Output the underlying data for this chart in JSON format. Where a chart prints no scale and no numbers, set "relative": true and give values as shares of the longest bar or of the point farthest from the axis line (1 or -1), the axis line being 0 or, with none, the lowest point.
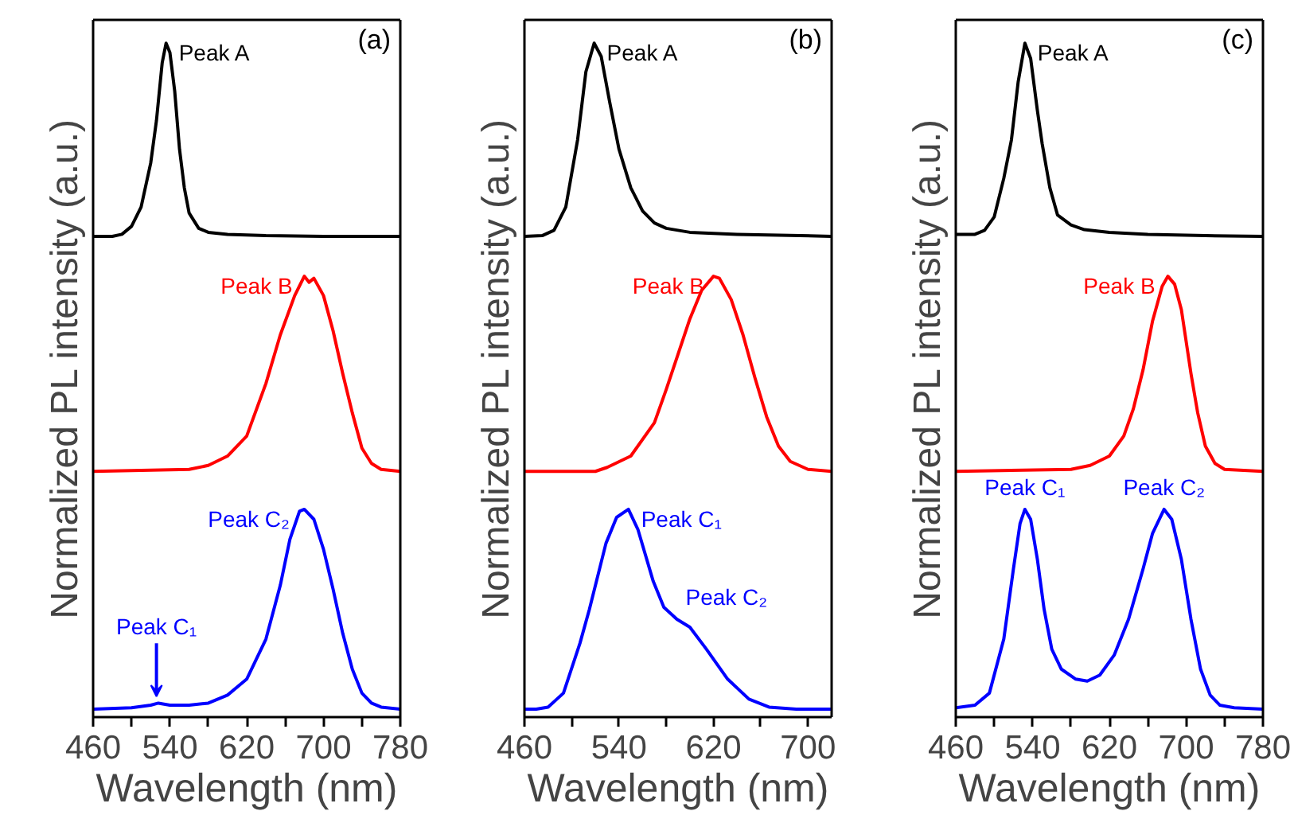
{
  "chart_data": [
    {
      "type": "line",
      "relative": true,
      "xlabel": "Wavelength (nm)",
      "ylabel": "Normalized PL intensity (a.u.)",
      "xlim": [
        460,
        780
      ],
      "xticks": [
        460,
        {
          "value": 500,
          "label": null
        },
        540,
        {
          "value": 580,
          "label": null
        },
        620,
        {
          "value": 660,
          "label": null
        },
        700,
        {
          "value": 740,
          "label": null
        },
        780
      ],
      "tick_labels": "x",
      "annotations": [
        "(a)",
        {
          "text": "Peak A",
          "x": 536,
          "y": 1
        },
        {
          "text": "Peak B",
          "x": 681,
          "y": 0.65
        },
        {
          "text": "Peak C₁",
          "x": 526,
          "y": 0.009
        },
        {
          "text": "Peak C₂",
          "x": 678,
          "y": 0.3
        }
      ],
      "series": [
        {
          "color": "#000000",
          "x": [
            460,
            480,
            490,
            500,
            510,
            520,
            526,
            532,
            536,
            540,
            545,
            550,
            555,
            560,
            570,
            580,
            600,
            640,
            700,
            780
          ],
          "values": [
            0.71,
            0.71,
            0.713,
            0.725,
            0.754,
            0.82,
            0.884,
            0.971,
            1,
            0.986,
            0.928,
            0.841,
            0.783,
            0.745,
            0.722,
            0.716,
            0.713,
            0.711,
            0.71,
            0.71
          ]
        },
        {
          "color": "#ff0000",
          "x": [
            460,
            560,
            580,
            600,
            620,
            640,
            655,
            670,
            680,
            685,
            690,
            700,
            710,
            720,
            730,
            740,
            750,
            760,
            780
          ],
          "values": [
            0.357,
            0.36,
            0.366,
            0.38,
            0.41,
            0.489,
            0.562,
            0.621,
            0.65,
            0.641,
            0.647,
            0.621,
            0.568,
            0.504,
            0.445,
            0.392,
            0.369,
            0.36,
            0.357
          ]
        },
        {
          "color": "#0000ff",
          "x": [
            460,
            500,
            520,
            528,
            540,
            560,
            580,
            600,
            620,
            640,
            655,
            665,
            675,
            680,
            690,
            700,
            710,
            720,
            730,
            740,
            750,
            760,
            780
          ],
          "values": [
            0,
            0.002,
            0.006,
            0.009,
            0.006,
            0.006,
            0.009,
            0.021,
            0.045,
            0.105,
            0.186,
            0.255,
            0.297,
            0.3,
            0.285,
            0.24,
            0.18,
            0.114,
            0.06,
            0.024,
            0.009,
            0.003,
            0
          ]
        }
      ]
    },
    {
      "type": "line",
      "relative": true,
      "xlabel": "Wavelength (nm)",
      "ylabel": "Normalized PL intensity (a.u.)",
      "xlim": [
        460,
        720
      ],
      "xticks": [
        460,
        {
          "value": 500,
          "label": null
        },
        540,
        {
          "value": 580,
          "label": null
        },
        620,
        {
          "value": 660,
          "label": null
        },
        700
      ],
      "tick_labels": "x",
      "annotations": [
        "(b)",
        {
          "text": "Peak A",
          "x": 519,
          "y": 1
        },
        {
          "text": "Peak B",
          "x": 623,
          "y": 0.65
        },
        {
          "text": "Peak C₁",
          "x": 548,
          "y": 0.3
        },
        {
          "text": "Peak C₂",
          "x": 591,
          "y": 0.135
        }
      ],
      "series": [
        {
          "color": "#000000",
          "x": [
            460,
            475,
            485,
            495,
            505,
            512,
            519,
            525,
            532,
            540,
            550,
            560,
            570,
            580,
            600,
            640,
            720
          ],
          "values": [
            0.71,
            0.711,
            0.719,
            0.754,
            0.855,
            0.957,
            1,
            0.98,
            0.913,
            0.841,
            0.783,
            0.748,
            0.73,
            0.722,
            0.716,
            0.713,
            0.71
          ]
        },
        {
          "color": "#ff0000",
          "x": [
            460,
            520,
            530,
            550,
            570,
            580,
            590,
            600,
            610,
            620,
            625,
            635,
            645,
            655,
            665,
            675,
            685,
            700,
            720
          ],
          "values": [
            0.357,
            0.357,
            0.363,
            0.38,
            0.43,
            0.48,
            0.533,
            0.586,
            0.629,
            0.65,
            0.647,
            0.615,
            0.562,
            0.498,
            0.439,
            0.395,
            0.372,
            0.36,
            0.357
          ]
        },
        {
          "color": "#0000ff",
          "x": [
            460,
            470,
            480,
            493,
            507,
            515,
            529,
            538,
            548,
            556,
            569,
            578,
            589,
            600,
            614,
            632,
            650,
            667,
            690,
            720
          ],
          "values": [
            0,
            0,
            0.003,
            0.024,
            0.099,
            0.15,
            0.249,
            0.288,
            0.3,
            0.27,
            0.192,
            0.153,
            0.135,
            0.123,
            0.09,
            0.045,
            0.015,
            0.003,
            0,
            0
          ]
        }
      ]
    },
    {
      "type": "line",
      "relative": true,
      "xlabel": "Wavelength (nm)",
      "ylabel": "Normalized PL intensity (a.u.)",
      "xlim": [
        460,
        780
      ],
      "xticks": [
        460,
        {
          "value": 500,
          "label": null
        },
        540,
        {
          "value": 580,
          "label": null
        },
        620,
        {
          "value": 660,
          "label": null
        },
        700,
        {
          "value": 740,
          "label": null
        },
        780
      ],
      "tick_labels": "x",
      "annotations": [
        "(c)",
        {
          "text": "Peak A",
          "x": 532,
          "y": 1
        },
        {
          "text": "Peak B",
          "x": 681,
          "y": 0.65
        },
        {
          "text": "Peak C₁",
          "x": 532,
          "y": 0.3
        },
        {
          "text": "Peak C₂",
          "x": 677,
          "y": 0.3
        }
      ],
      "series": [
        {
          "color": "#000000",
          "x": [
            460,
            480,
            490,
            500,
            510,
            518,
            525,
            532,
            538,
            545,
            550,
            558,
            566,
            580,
            594,
            620,
            660,
            720,
            780
          ],
          "values": [
            0.713,
            0.713,
            0.719,
            0.739,
            0.797,
            0.855,
            0.942,
            1,
            0.977,
            0.899,
            0.849,
            0.783,
            0.742,
            0.727,
            0.72,
            0.716,
            0.713,
            0.711,
            0.71
          ]
        },
        {
          "color": "#ff0000",
          "x": [
            460,
            580,
            600,
            620,
            635,
            645,
            655,
            665,
            675,
            681,
            688,
            695,
            705,
            712,
            720,
            730,
            740,
            780
          ],
          "values": [
            0.357,
            0.36,
            0.366,
            0.38,
            0.41,
            0.451,
            0.509,
            0.583,
            0.635,
            0.65,
            0.638,
            0.6,
            0.504,
            0.445,
            0.395,
            0.369,
            0.36,
            0.357
          ]
        },
        {
          "color": "#0000ff",
          "x": [
            460,
            480,
            495,
            510,
            520,
            527,
            532,
            538,
            545,
            552,
            560,
            570,
            585,
            597,
            610,
            625,
            640,
            655,
            665,
            677,
            685,
            695,
            705,
            715,
            725,
            735,
            750,
            780
          ],
          "values": [
            0.002,
            0.006,
            0.024,
            0.105,
            0.21,
            0.279,
            0.3,
            0.285,
            0.225,
            0.15,
            0.09,
            0.06,
            0.045,
            0.042,
            0.051,
            0.081,
            0.135,
            0.21,
            0.264,
            0.3,
            0.285,
            0.225,
            0.135,
            0.06,
            0.021,
            0.006,
            0.002,
            0
          ]
        }
      ]
    }
  ]
}
